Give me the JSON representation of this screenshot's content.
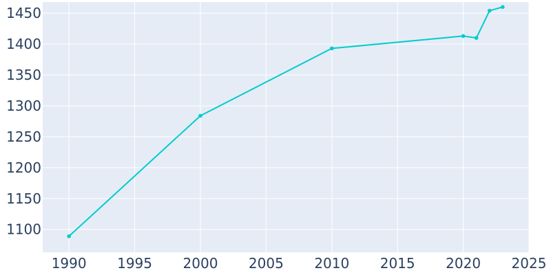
{
  "chart_data": {
    "type": "line",
    "title": "",
    "xlabel": "",
    "ylabel": "",
    "x": [
      1990,
      2000,
      2010,
      2020,
      2021,
      2022,
      2023
    ],
    "series": [
      {
        "values": [
          1089,
          1284,
          1393,
          1413,
          1410,
          1454,
          1460
        ]
      }
    ],
    "xlim": [
      1988,
      2025
    ],
    "ylim": [
      1063,
      1468
    ],
    "x_ticks": [
      1990,
      1995,
      2000,
      2005,
      2010,
      2015,
      2020,
      2025
    ],
    "y_ticks": [
      1100,
      1150,
      1200,
      1250,
      1300,
      1350,
      1400,
      1450
    ],
    "grid": true,
    "legend": "none",
    "colors": {
      "line": "#00cccc",
      "plot_bg": "#e5ecf6",
      "grid": "#ffffff",
      "text": "#2a3f5f"
    }
  }
}
